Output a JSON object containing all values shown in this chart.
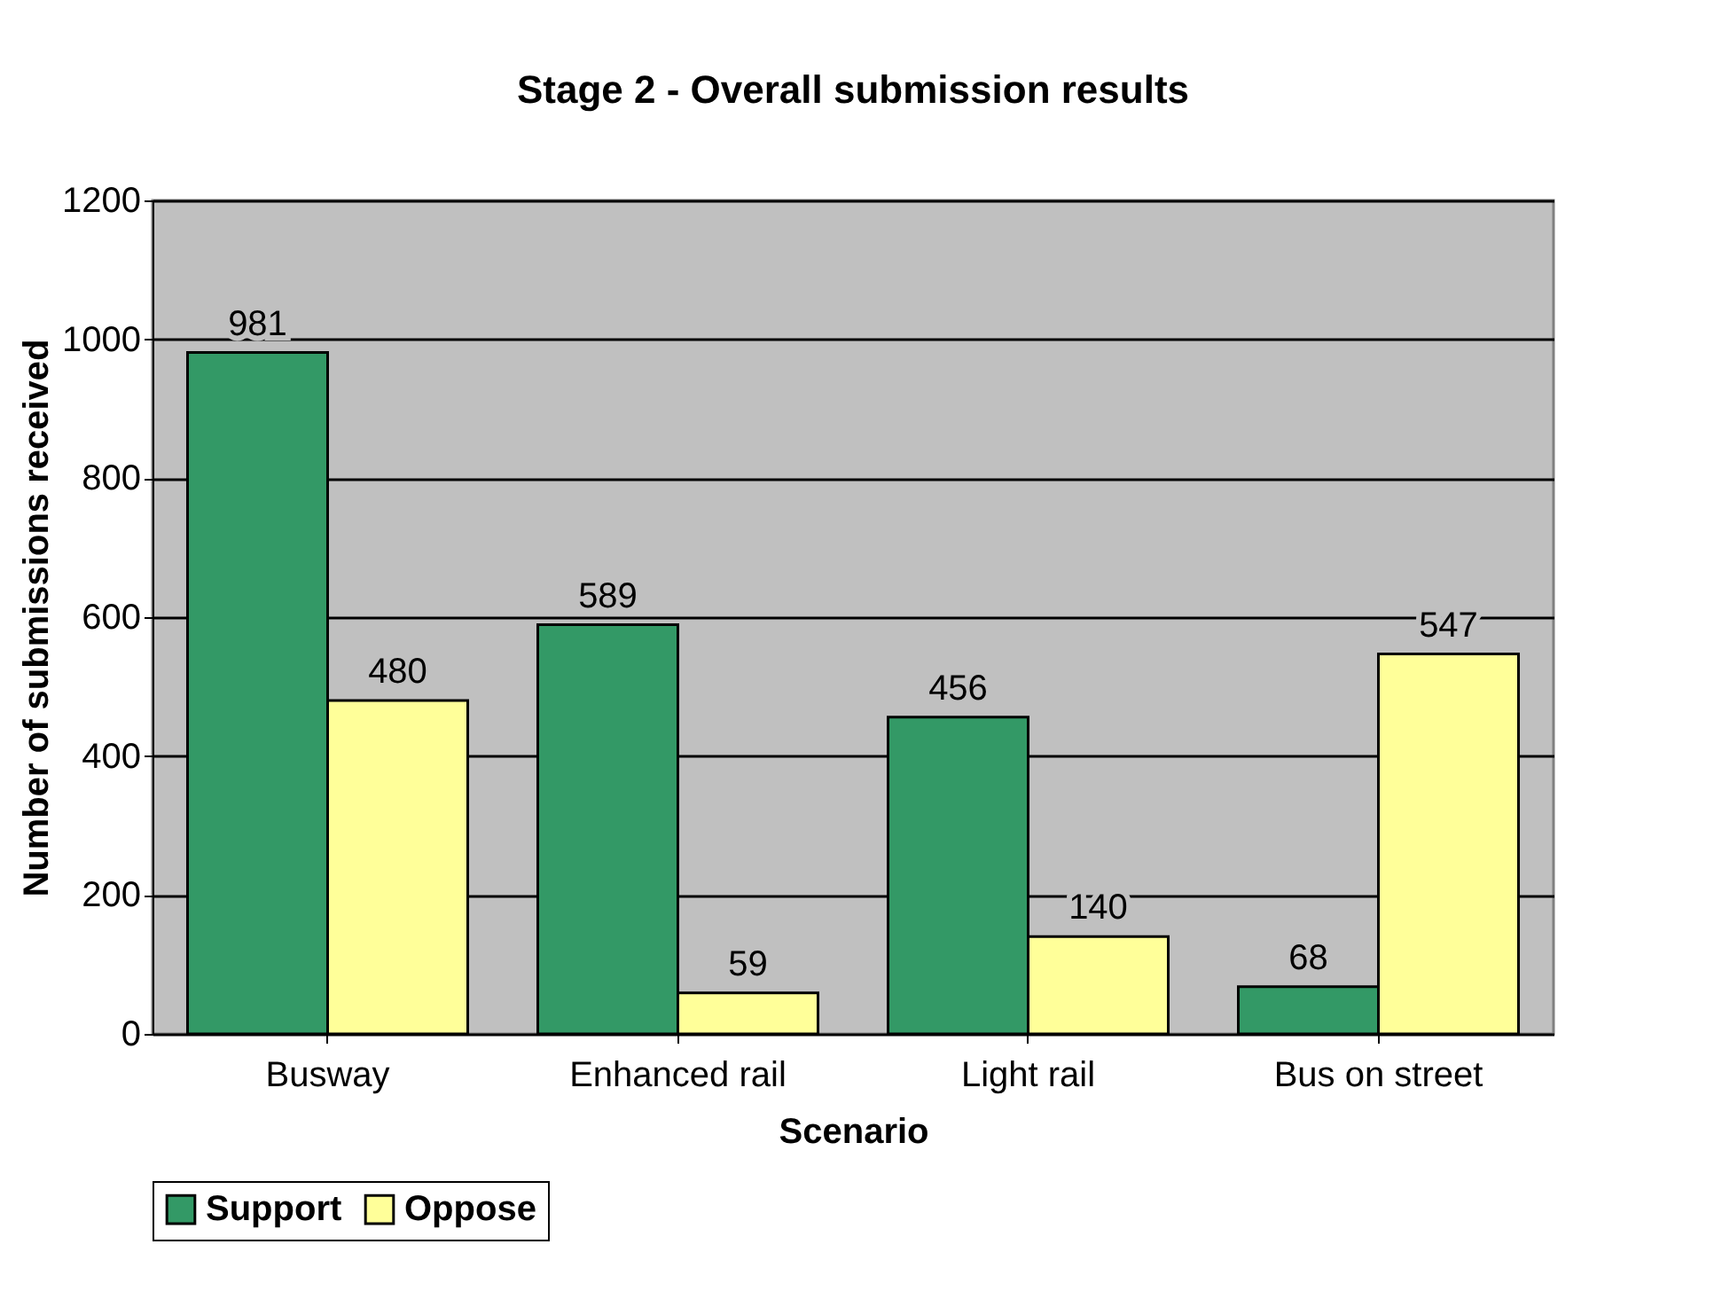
{
  "chart_data": {
    "type": "bar",
    "title": "Stage 2 - Overall submission results",
    "xlabel": "Scenario",
    "ylabel": "Number of submissions received",
    "categories": [
      "Busway",
      "Enhanced rail",
      "Light rail",
      "Bus on street"
    ],
    "series": [
      {
        "name": "Support",
        "color": "#339966",
        "values": [
          981,
          589,
          456,
          68
        ]
      },
      {
        "name": "Oppose",
        "color": "#ffff99",
        "values": [
          480,
          59,
          140,
          547
        ]
      }
    ],
    "ylim": [
      0,
      1200
    ],
    "yticks": [
      0,
      200,
      400,
      600,
      800,
      1000,
      1200
    ],
    "grid": "y",
    "legend": "bottom",
    "data_labels": true
  }
}
